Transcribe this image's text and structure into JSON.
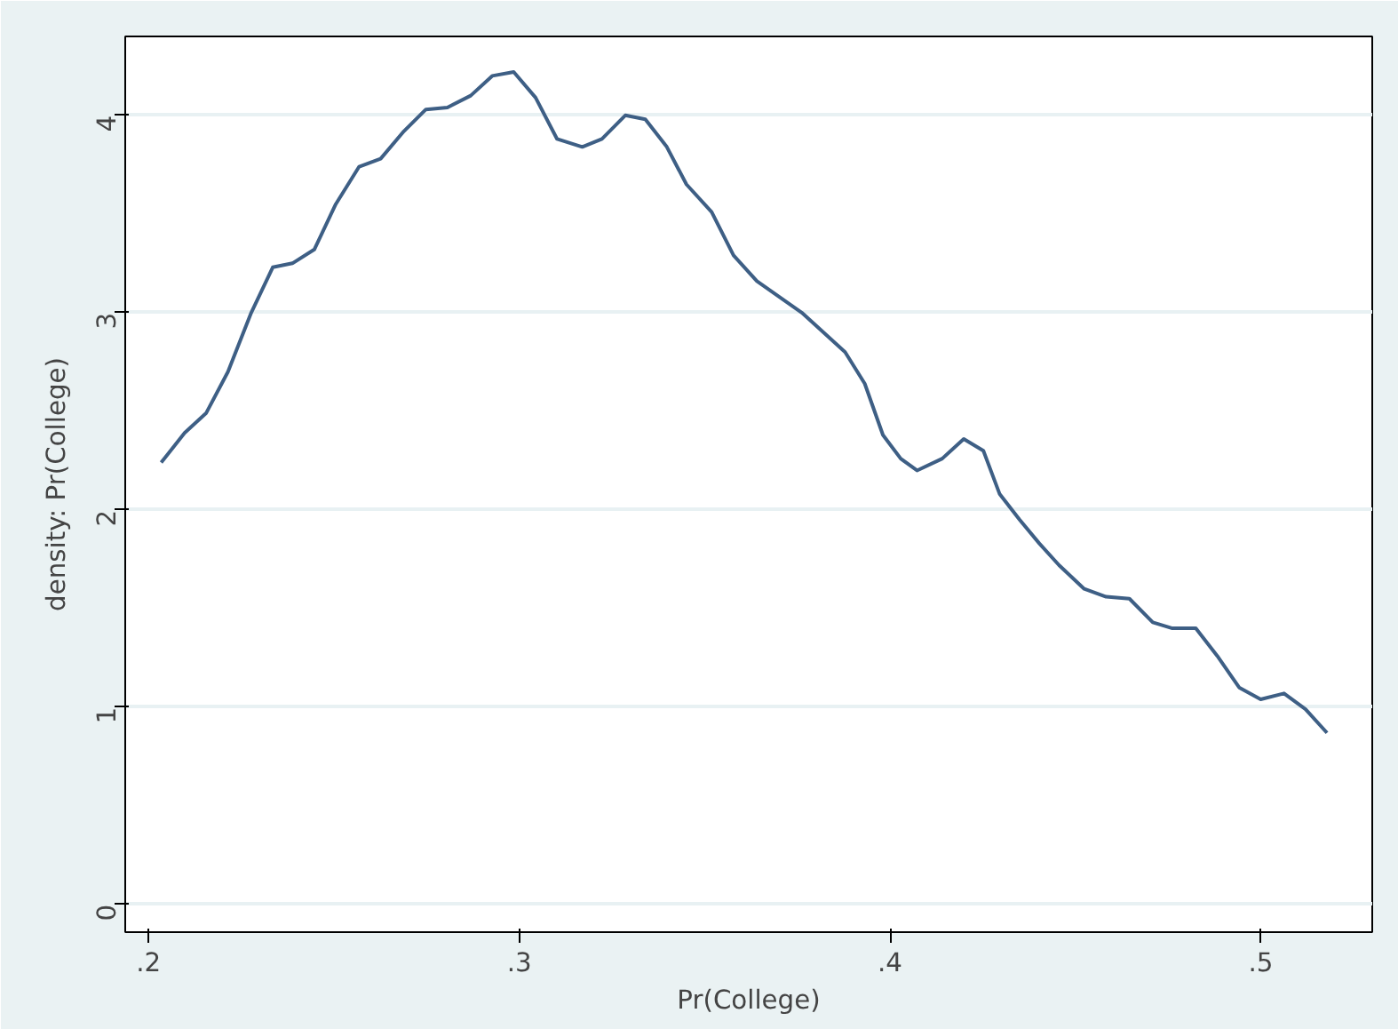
{
  "chart_data": {
    "type": "line",
    "xlabel": "Pr(College)",
    "ylabel": "density: Pr(College)",
    "x": [
      0.2034,
      0.2097,
      0.2155,
      0.2214,
      0.2277,
      0.2335,
      0.2388,
      0.2447,
      0.2505,
      0.2568,
      0.2626,
      0.2689,
      0.2748,
      0.2806,
      0.2869,
      0.2927,
      0.2985,
      0.3044,
      0.3102,
      0.317,
      0.3223,
      0.3286,
      0.334,
      0.3398,
      0.3451,
      0.3519,
      0.3578,
      0.3641,
      0.3762,
      0.3879,
      0.3932,
      0.3981,
      0.4029,
      0.4073,
      0.4141,
      0.4199,
      0.4252,
      0.4296,
      0.435,
      0.4403,
      0.4456,
      0.4524,
      0.4583,
      0.4646,
      0.4709,
      0.4762,
      0.4825,
      0.4883,
      0.4942,
      0.5,
      0.5063,
      0.5121,
      0.5179
    ],
    "series": [
      {
        "color": "#3e5f85",
        "values": [
          2.24,
          2.39,
          2.49,
          2.7,
          3.0,
          3.23,
          3.25,
          3.32,
          3.55,
          3.74,
          3.78,
          3.92,
          4.03,
          4.04,
          4.1,
          4.2,
          4.22,
          4.09,
          3.88,
          3.84,
          3.88,
          4.0,
          3.98,
          3.84,
          3.65,
          3.51,
          3.29,
          3.16,
          3.0,
          2.8,
          2.64,
          2.38,
          2.26,
          2.2,
          2.26,
          2.36,
          2.3,
          2.08,
          1.95,
          1.83,
          1.72,
          1.6,
          1.56,
          1.55,
          1.43,
          1.4,
          1.4,
          1.26,
          1.1,
          1.04,
          1.07,
          0.99,
          0.87
        ]
      }
    ],
    "xlim": [
      0.1937,
      0.5301
    ],
    "ylim": [
      -0.14,
      4.4
    ],
    "xticks": [
      {
        "value": 0.2,
        "label": ".2"
      },
      {
        "value": 0.3,
        "label": ".3"
      },
      {
        "value": 0.4,
        "label": ".4"
      },
      {
        "value": 0.5,
        "label": ".5"
      }
    ],
    "yticks": [
      0,
      1,
      2,
      3,
      4
    ],
    "grid": "y"
  }
}
